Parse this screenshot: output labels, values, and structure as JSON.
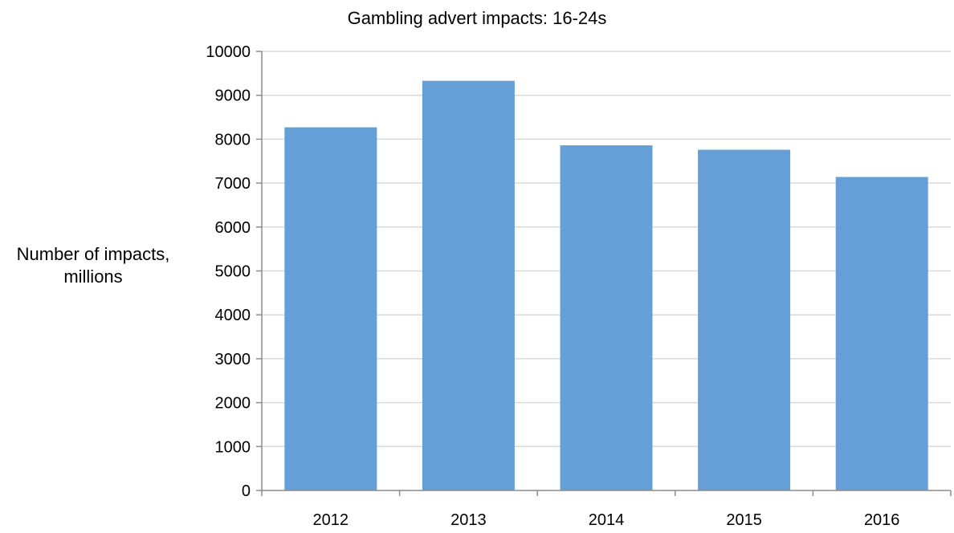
{
  "chart_data": {
    "type": "bar",
    "title": "Gambling advert impacts: 16-24s",
    "ylabel": "Number of impacts, millions",
    "xlabel": "",
    "categories": [
      "2012",
      "2013",
      "2014",
      "2015",
      "2016"
    ],
    "values": [
      8270,
      9330,
      7860,
      7760,
      7140
    ],
    "ylim": [
      0,
      10000
    ],
    "yticks": [
      "0",
      "1000",
      "2000",
      "3000",
      "4000",
      "5000",
      "6000",
      "7000",
      "8000",
      "9000",
      "10000"
    ],
    "grid": true,
    "legend": "none",
    "bar_color": "#659fd8",
    "grid_color": "#d9d9d9",
    "axis_color": "#8c8c8c"
  }
}
